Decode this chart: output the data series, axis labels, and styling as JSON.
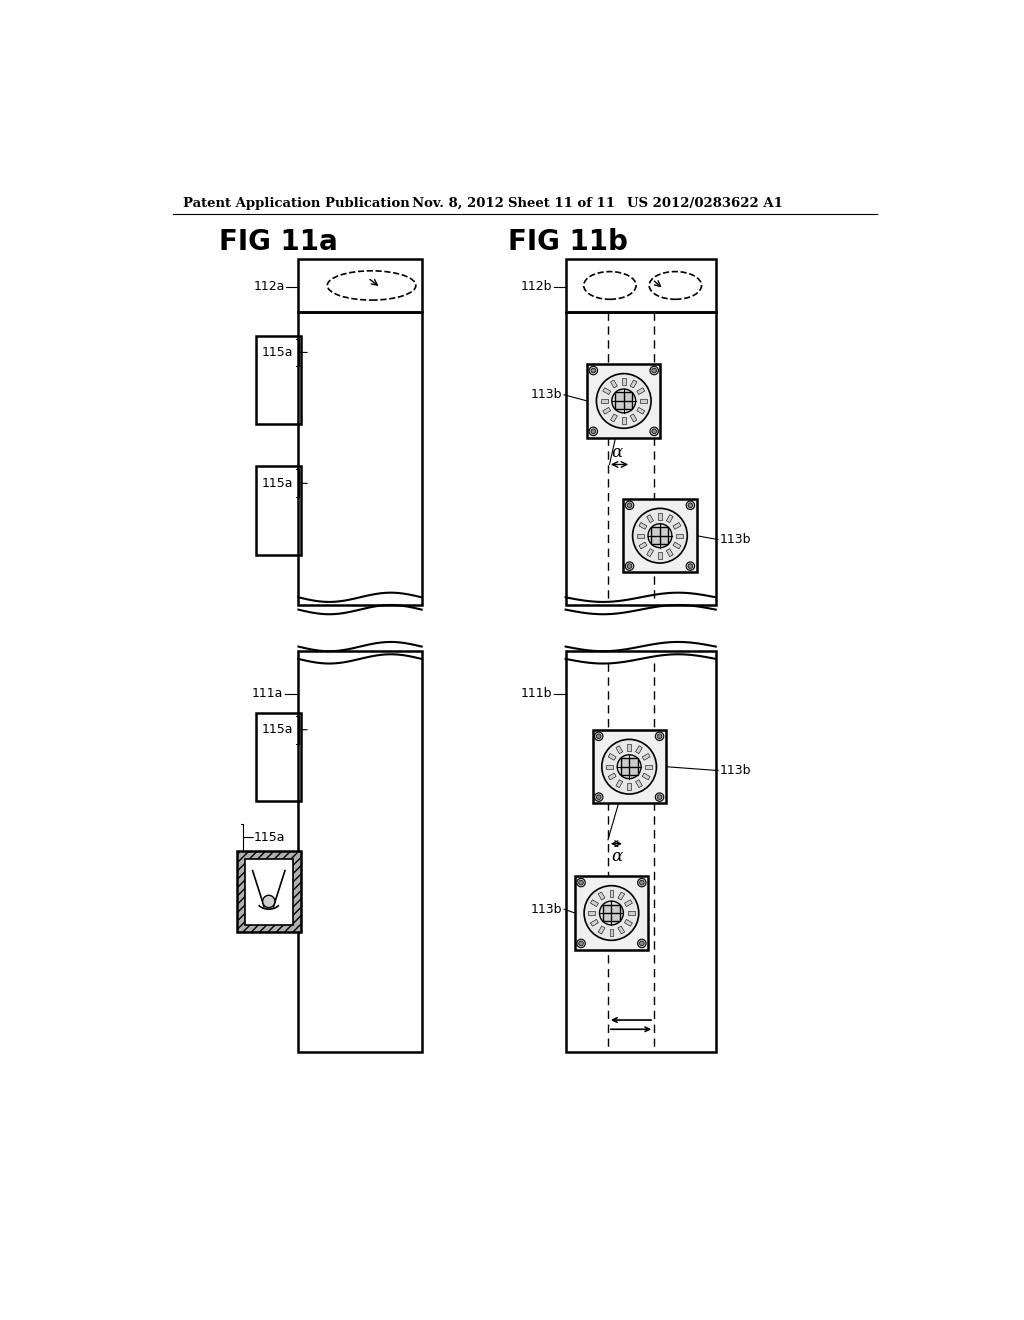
{
  "title_left": "FIG 11a",
  "title_right": "FIG 11b",
  "header_text": "Patent Application Publication",
  "header_date": "Nov. 8, 2012",
  "header_sheet": "Sheet 11 of 11",
  "header_patent": "US 2012/0283622 A1",
  "bg_color": "#ffffff",
  "line_color": "#000000",
  "labels": {
    "112a": "112a",
    "115a": "115a",
    "111a": "111a",
    "112b": "112b",
    "113b": "113b",
    "111b": "111b",
    "alpha": "α"
  }
}
